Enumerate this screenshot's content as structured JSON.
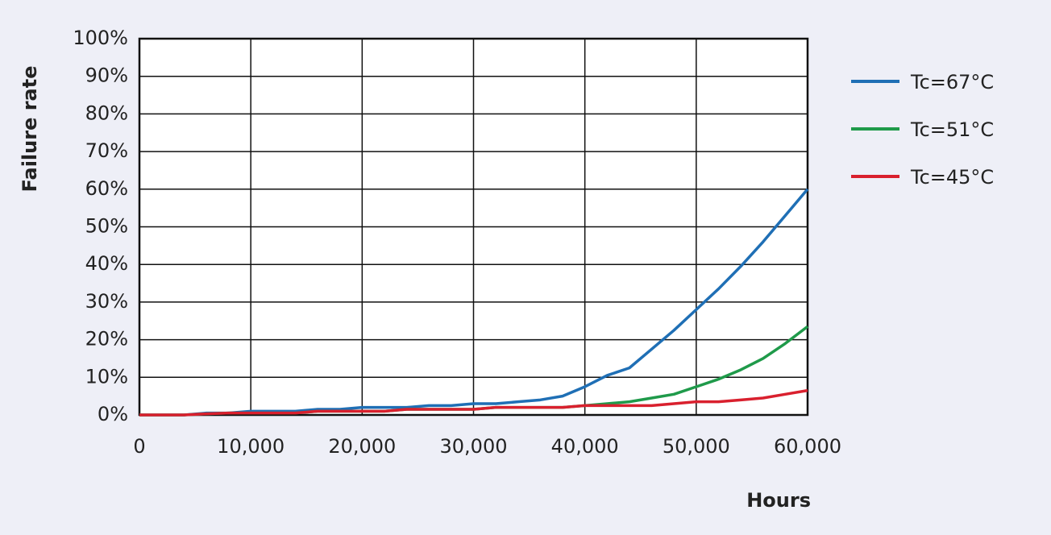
{
  "chart_data": {
    "type": "line",
    "y_label": "Failure rate",
    "x_label": "Hours",
    "x": [
      0,
      2000,
      4000,
      6000,
      8000,
      10000,
      12000,
      14000,
      16000,
      18000,
      20000,
      22000,
      24000,
      26000,
      28000,
      30000,
      32000,
      34000,
      36000,
      38000,
      40000,
      42000,
      44000,
      46000,
      48000,
      50000,
      52000,
      54000,
      56000,
      58000,
      60000
    ],
    "series": [
      {
        "name": "Tc=67°C",
        "color": "#1f6fb5",
        "values": [
          0,
          0,
          0,
          0.5,
          0.5,
          1,
          1,
          1,
          1.5,
          1.5,
          2,
          2,
          2,
          2.5,
          2.5,
          3,
          3,
          3.5,
          4,
          5,
          7.5,
          10.5,
          12.5,
          17.5,
          22.5,
          28,
          33.5,
          39.5,
          46,
          53,
          60
        ]
      },
      {
        "name": "Tc=51°C",
        "color": "#1f9a4a",
        "values": [
          0,
          0,
          0,
          0.3,
          0.5,
          0.5,
          0.5,
          0.5,
          1,
          1,
          1,
          1,
          1.5,
          1.5,
          1.5,
          1.5,
          2,
          2,
          2,
          2,
          2.5,
          3,
          3.5,
          4.5,
          5.5,
          7.5,
          9.5,
          12,
          15,
          19,
          23.5
        ]
      },
      {
        "name": "Tc=45°C",
        "color": "#d9202e",
        "values": [
          0,
          0,
          0,
          0.3,
          0.5,
          0.5,
          0.5,
          0.5,
          1,
          1,
          1,
          1,
          1.5,
          1.5,
          1.5,
          1.5,
          2,
          2,
          2,
          2,
          2.5,
          2.5,
          2.5,
          2.5,
          3,
          3.5,
          3.5,
          4,
          4.5,
          5.5,
          6.5
        ]
      }
    ],
    "xlim": [
      0,
      60000
    ],
    "xticks": [
      0,
      {
        "value": 10000,
        "label": "10,000"
      },
      {
        "value": 20000,
        "label": "20,000"
      },
      {
        "value": 30000,
        "label": "30,000"
      },
      {
        "value": 40000,
        "label": "40,000"
      },
      {
        "value": 50000,
        "label": "50,000"
      },
      {
        "value": 60000,
        "label": "60,000"
      }
    ],
    "ylim": [
      0,
      100
    ],
    "yticks": [
      {
        "value": 0,
        "label": "0%"
      },
      {
        "value": 10,
        "label": "10%"
      },
      {
        "value": 20,
        "label": "20%"
      },
      {
        "value": 30,
        "label": "30%"
      },
      {
        "value": 40,
        "label": "40%"
      },
      {
        "value": 50,
        "label": "50%"
      },
      {
        "value": 60,
        "label": "60%"
      },
      {
        "value": 70,
        "label": "70%"
      },
      {
        "value": 80,
        "label": "80%"
      },
      {
        "value": 90,
        "label": "90%"
      },
      {
        "value": 100,
        "label": "100%"
      }
    ],
    "grid": true
  }
}
